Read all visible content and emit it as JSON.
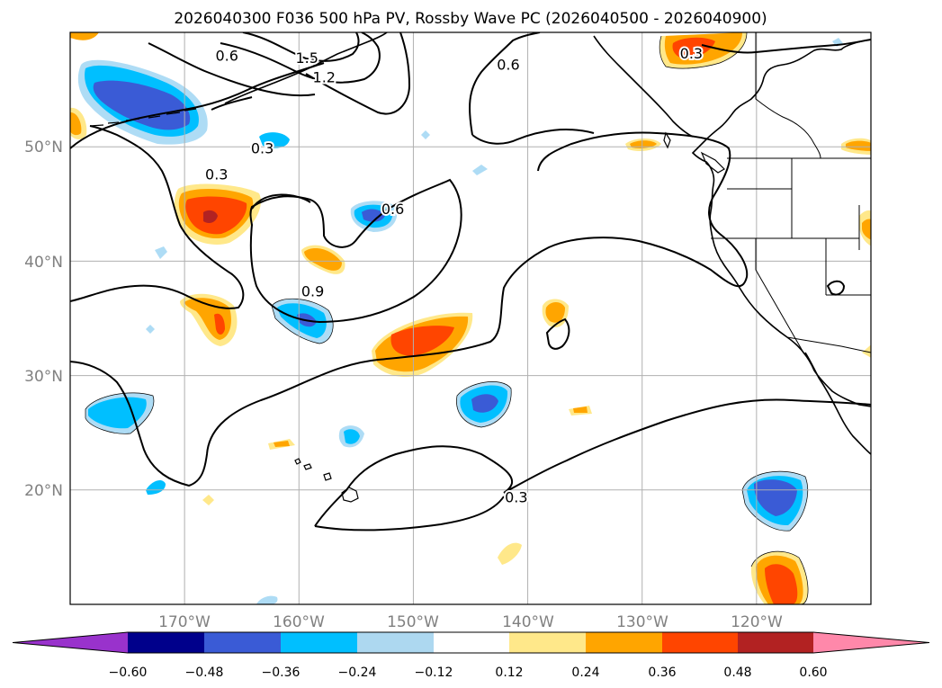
{
  "title": "2026040300 F036 500 hPa PV, Rossby Wave PC (2026040500 - 2026040900)",
  "map": {
    "lon_range": [
      -180,
      -110
    ],
    "lat_range": [
      10,
      60
    ],
    "lon_ticks": [
      {
        "value": -170,
        "label": "170°W"
      },
      {
        "value": -160,
        "label": "160°W"
      },
      {
        "value": -150,
        "label": "150°W"
      },
      {
        "value": -140,
        "label": "140°W"
      },
      {
        "value": -130,
        "label": "130°W"
      },
      {
        "value": -120,
        "label": "120°W"
      }
    ],
    "lat_ticks": [
      {
        "value": 20,
        "label": "20°N"
      },
      {
        "value": 30,
        "label": "30°N"
      },
      {
        "value": 40,
        "label": "40°N"
      },
      {
        "value": 50,
        "label": "50°N"
      }
    ],
    "contour_labels": [
      {
        "text": "1.5",
        "lon": -159.3,
        "lat": 57.8
      },
      {
        "text": "1.2",
        "lon": -157.8,
        "lat": 56.1
      },
      {
        "text": "0.6",
        "lon": -166.3,
        "lat": 58.0
      },
      {
        "text": "0.3",
        "lon": -163.2,
        "lat": 49.9
      },
      {
        "text": "0.3",
        "lon": -167.2,
        "lat": 47.6
      },
      {
        "text": "0.6",
        "lon": -151.8,
        "lat": 44.6
      },
      {
        "text": "0.9",
        "lon": -158.8,
        "lat": 37.4
      },
      {
        "text": "0.6",
        "lon": -141.7,
        "lat": 57.2
      },
      {
        "text": "0.3",
        "lon": -125.7,
        "lat": 58.2
      },
      {
        "text": "0.3",
        "lon": -141.0,
        "lat": 19.4
      }
    ]
  },
  "colorbar": {
    "ticks": [
      "−0.60",
      "−0.48",
      "−0.36",
      "−0.24",
      "−0.12",
      "0.12",
      "0.24",
      "0.36",
      "0.48",
      "0.60"
    ],
    "colors": [
      "#9932cc",
      "#00008b",
      "#3a5bd6",
      "#00bfff",
      "#add8f0",
      "#ffffff",
      "#ffe88a",
      "#ffa500",
      "#ff4500",
      "#b22222",
      "#ff88aa"
    ]
  }
}
